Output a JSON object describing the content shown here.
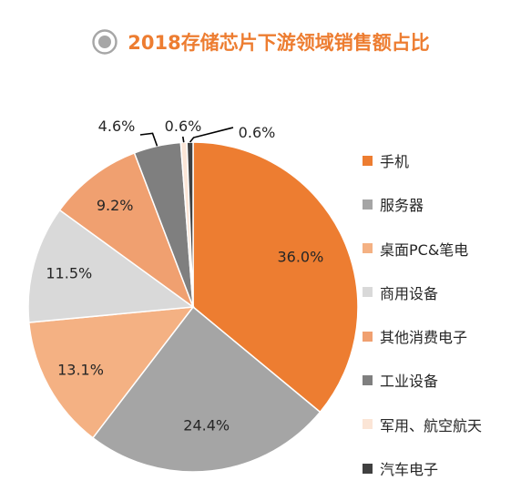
{
  "chart_data": {
    "type": "pie",
    "title": "2018存储芯片下游领域销售额占比",
    "categories": [
      "手机",
      "服务器",
      "桌面PC&笔电",
      "商用设备",
      "其他消费电子",
      "工业设备",
      "军用、航空航天",
      "汽车电子"
    ],
    "values": [
      36.0,
      24.4,
      13.1,
      11.5,
      9.2,
      4.6,
      0.6,
      0.6
    ],
    "data_labels": [
      "36.0%",
      "24.4%",
      "13.1%",
      "11.5%",
      "9.2%",
      "4.6%",
      "0.6%",
      "0.6%"
    ],
    "colors": [
      "#ED7D31",
      "#A5A5A5",
      "#F4B183",
      "#D9D9D9",
      "#F0A070",
      "#7F7F7F",
      "#FBE5D6",
      "#404040"
    ],
    "legend_position": "right",
    "start_angle_deg": 0,
    "direction": "clockwise"
  },
  "icons": {
    "title_icon": "radio-target-icon"
  }
}
